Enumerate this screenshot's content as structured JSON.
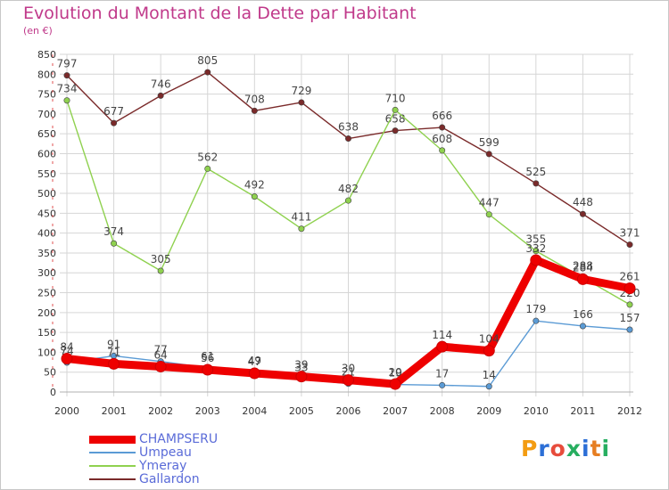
{
  "header": {
    "title": "Evolution du Montant de la Dette par Habitant",
    "unit": "(en €)"
  },
  "chart_data": {
    "type": "line",
    "x": [
      "2000",
      "2001",
      "2002",
      "2003",
      "2004",
      "2005",
      "2006",
      "2007",
      "2008",
      "2009",
      "2010",
      "2011",
      "2012"
    ],
    "ylim": [
      0,
      850
    ],
    "yticks": [
      0,
      50,
      100,
      150,
      200,
      250,
      300,
      350,
      400,
      450,
      500,
      550,
      600,
      650,
      700,
      750,
      800,
      850
    ],
    "grid": true,
    "legend_position": "bottom-left",
    "series": [
      {
        "name": "CHAMPSERU",
        "color": "#ee0000",
        "values": [
          84,
          71,
          64,
          56,
          47,
          39,
          30,
          20,
          114,
          104,
          332,
          284,
          261
        ]
      },
      {
        "name": "Umpeau",
        "color": "#5b9bd5",
        "values": [
          74,
          91,
          77,
          61,
          49,
          33,
          21,
          19,
          17,
          14,
          179,
          166,
          157
        ]
      },
      {
        "name": "Ymeray",
        "color": "#8fd14f",
        "values": [
          734,
          374,
          305,
          562,
          492,
          411,
          482,
          710,
          608,
          447,
          355,
          288,
          220
        ]
      },
      {
        "name": "Gallardon",
        "color": "#7a2a2a",
        "values": [
          797,
          677,
          746,
          805,
          708,
          729,
          638,
          658,
          666,
          599,
          525,
          448,
          371
        ]
      }
    ]
  },
  "logo": {
    "text": "Proxiti",
    "letter_colors": [
      "#f39c12",
      "#2c6fd6",
      "#e74c3c",
      "#27ae60",
      "#2c6fd6",
      "#e67e22",
      "#27ae60"
    ]
  }
}
